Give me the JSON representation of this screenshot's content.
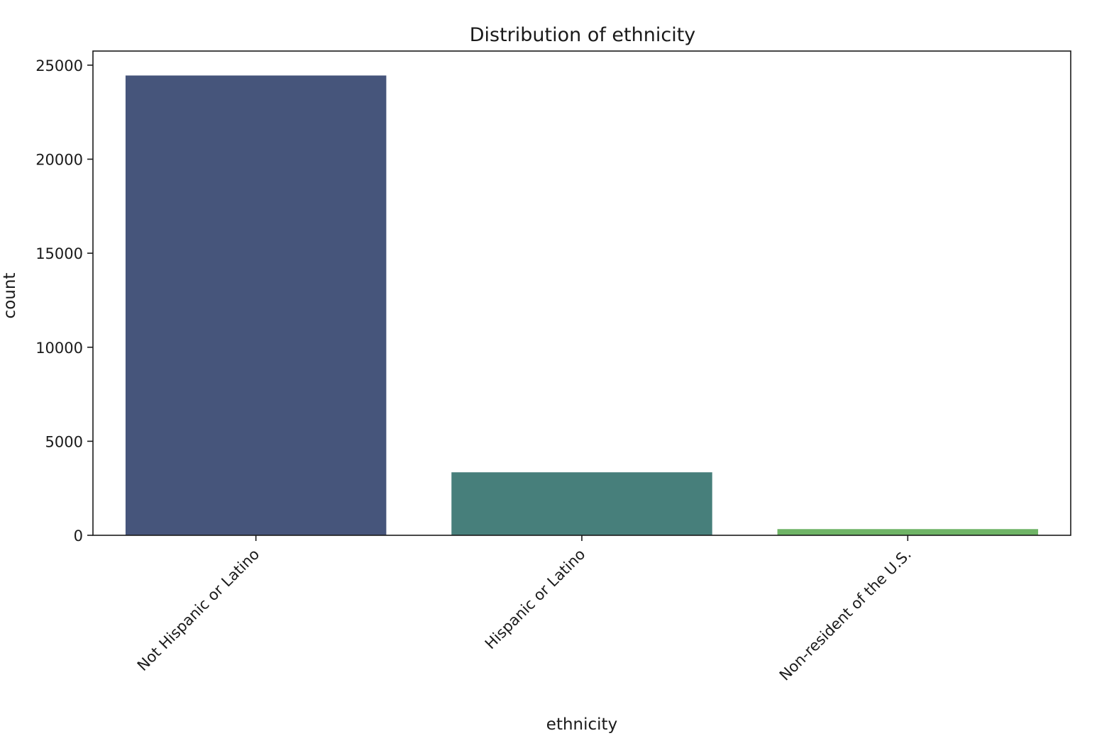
{
  "chart_data": {
    "type": "bar",
    "title": "Distribution of ethnicity",
    "xlabel": "ethnicity",
    "ylabel": "count",
    "categories": [
      "Not Hispanic or Latino",
      "Hispanic or Latino",
      "Non-resident of the U.S."
    ],
    "values": [
      24450,
      3350,
      330
    ],
    "colors": [
      "#46557b",
      "#477f7b",
      "#6fb466"
    ],
    "ylim": [
      0,
      25750
    ],
    "yticks": [
      0,
      5000,
      10000,
      15000,
      20000,
      25000
    ],
    "grid": false,
    "legend": "none"
  }
}
